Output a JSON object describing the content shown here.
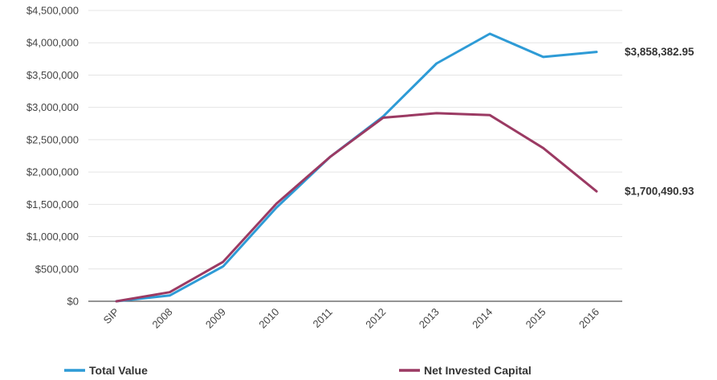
{
  "chart_data": {
    "type": "line",
    "categories": [
      "SIP",
      "2008",
      "2009",
      "2010",
      "2011",
      "2012",
      "2013",
      "2014",
      "2015",
      "2016"
    ],
    "y_tick_labels": [
      "$0",
      "$500,000",
      "$1,000,000",
      "$1,500,000",
      "$2,000,000",
      "$2,500,000",
      "$3,000,000",
      "$3,500,000",
      "$4,000,000",
      "$4,500,000"
    ],
    "ylim": [
      0,
      4500000
    ],
    "grid": true,
    "legend_position": "bottom",
    "series": [
      {
        "name": "Total Value",
        "color": "#2e9bd6",
        "values": [
          0,
          90000,
          540000,
          1450000,
          2230000,
          2860000,
          3680000,
          4140000,
          3780000,
          3858382.95
        ],
        "end_label": "$3,858,382.95"
      },
      {
        "name": "Net Invested Capital",
        "color": "#9b3a63",
        "values": [
          0,
          140000,
          610000,
          1510000,
          2230000,
          2840000,
          2910000,
          2880000,
          2370000,
          1700490.93
        ],
        "end_label": "$1,700,490.93"
      }
    ]
  }
}
